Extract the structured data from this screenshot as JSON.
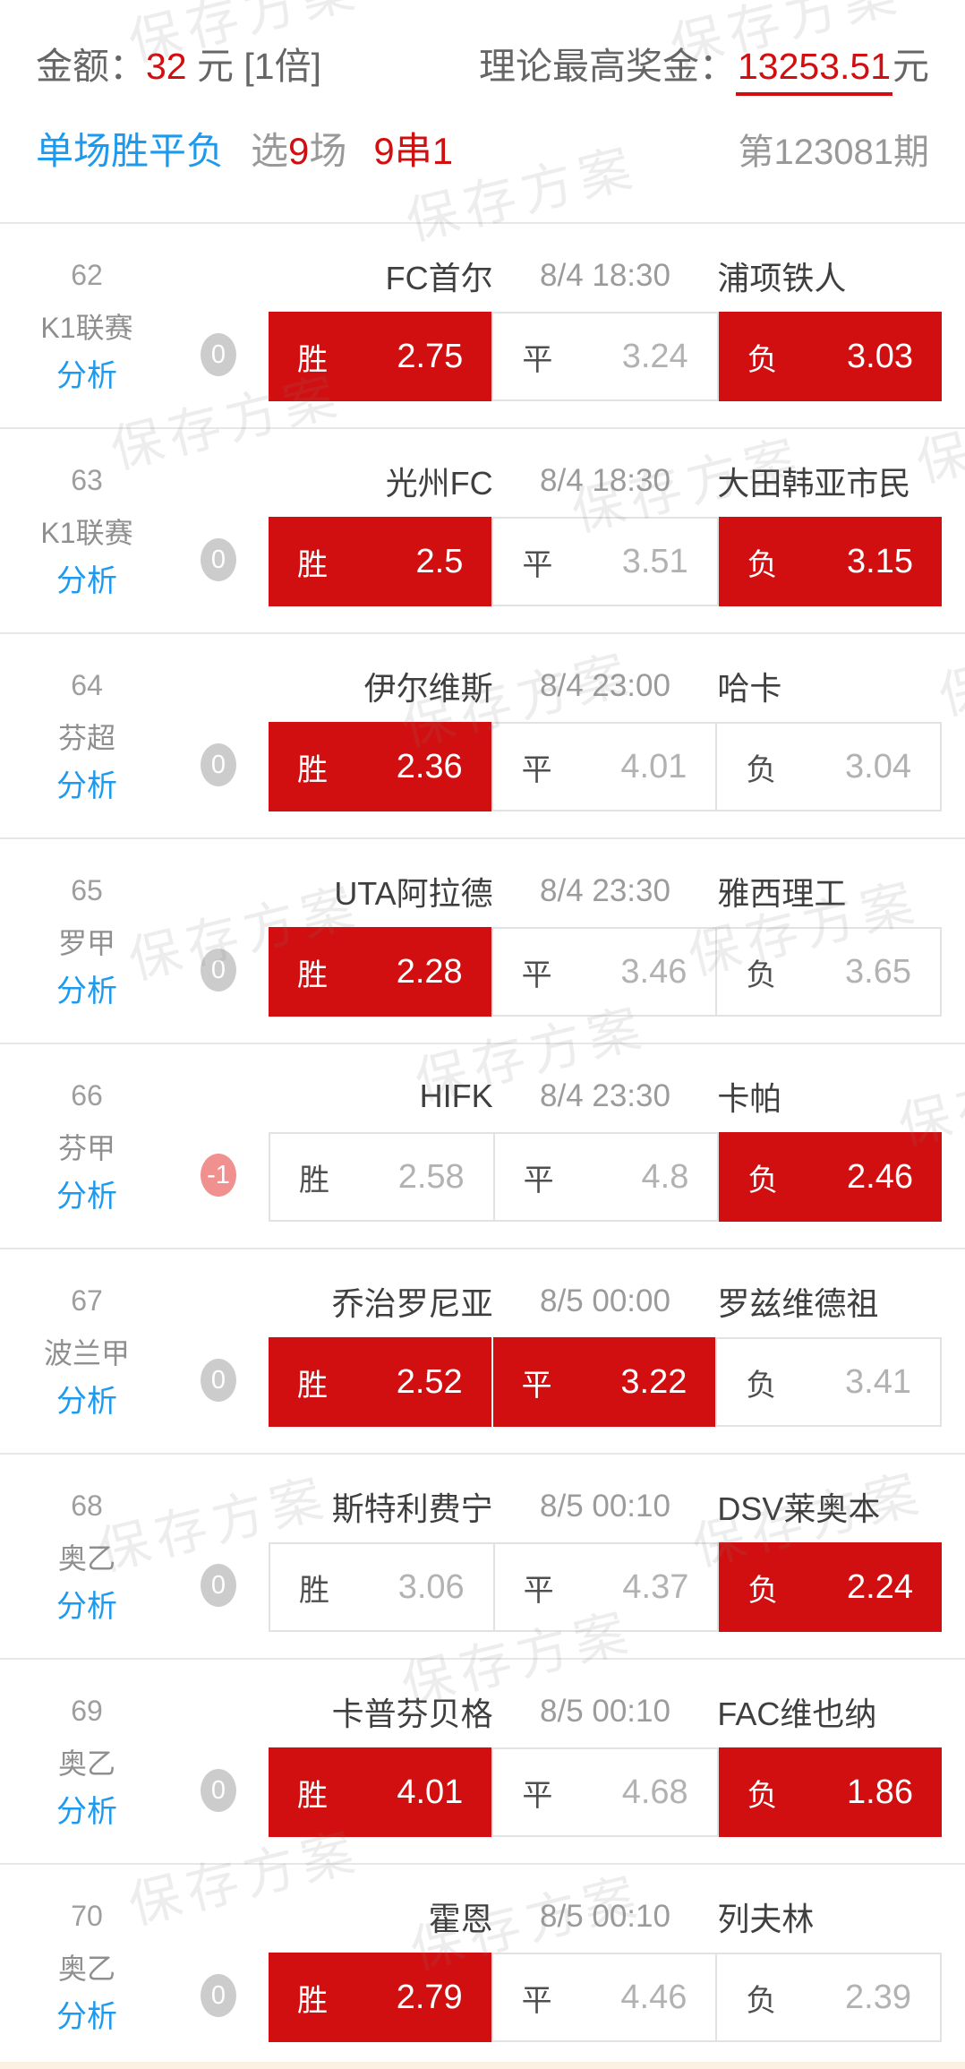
{
  "header": {
    "amount_label": "金额：",
    "amount_value": "32",
    "amount_suffix": "元 [1倍]",
    "prize_label": "理论最高奖金：",
    "prize_value": "13253.51",
    "prize_unit": "元",
    "play_type": "单场胜平负",
    "select_prefix": "选",
    "select_count": "9",
    "select_suffix": "场",
    "parlay": "9串1",
    "issue": "第123081期"
  },
  "watermark": {
    "text": "保存方案"
  },
  "analysis_label": "分析",
  "odds_labels": {
    "win": "胜",
    "draw": "平",
    "lose": "负"
  },
  "colors": {
    "accent_red": "#d20f10",
    "link_blue": "#1c9af0",
    "badge_gray": "#cccccc",
    "badge_pink": "#f09190"
  },
  "matches": [
    {
      "no": "62",
      "league": "K1联赛",
      "handicap": "0",
      "home": "FC首尔",
      "time": "8/4 18:30",
      "away": "浦项铁人",
      "odds": {
        "win": {
          "value": "2.75",
          "selected": true
        },
        "draw": {
          "value": "3.24",
          "selected": false
        },
        "lose": {
          "value": "3.03",
          "selected": true
        }
      }
    },
    {
      "no": "63",
      "league": "K1联赛",
      "handicap": "0",
      "home": "光州FC",
      "time": "8/4 18:30",
      "away": "大田韩亚市民",
      "odds": {
        "win": {
          "value": "2.5",
          "selected": true
        },
        "draw": {
          "value": "3.51",
          "selected": false
        },
        "lose": {
          "value": "3.15",
          "selected": true
        }
      }
    },
    {
      "no": "64",
      "league": "芬超",
      "handicap": "0",
      "home": "伊尔维斯",
      "time": "8/4 23:00",
      "away": "哈卡",
      "odds": {
        "win": {
          "value": "2.36",
          "selected": true
        },
        "draw": {
          "value": "4.01",
          "selected": false
        },
        "lose": {
          "value": "3.04",
          "selected": false
        }
      }
    },
    {
      "no": "65",
      "league": "罗甲",
      "handicap": "0",
      "home": "UTA阿拉德",
      "time": "8/4 23:30",
      "away": "雅西理工",
      "odds": {
        "win": {
          "value": "2.28",
          "selected": true
        },
        "draw": {
          "value": "3.46",
          "selected": false
        },
        "lose": {
          "value": "3.65",
          "selected": false
        }
      }
    },
    {
      "no": "66",
      "league": "芬甲",
      "handicap": "-1",
      "home": "HIFK",
      "time": "8/4 23:30",
      "away": "卡帕",
      "odds": {
        "win": {
          "value": "2.58",
          "selected": false
        },
        "draw": {
          "value": "4.8",
          "selected": false
        },
        "lose": {
          "value": "2.46",
          "selected": true
        }
      }
    },
    {
      "no": "67",
      "league": "波兰甲",
      "handicap": "0",
      "home": "乔治罗尼亚",
      "time": "8/5 00:00",
      "away": "罗兹维德祖",
      "odds": {
        "win": {
          "value": "2.52",
          "selected": true
        },
        "draw": {
          "value": "3.22",
          "selected": true
        },
        "lose": {
          "value": "3.41",
          "selected": false
        }
      }
    },
    {
      "no": "68",
      "league": "奥乙",
      "handicap": "0",
      "home": "斯特利费宁",
      "time": "8/5 00:10",
      "away": "DSV莱奥本",
      "odds": {
        "win": {
          "value": "3.06",
          "selected": false
        },
        "draw": {
          "value": "4.37",
          "selected": false
        },
        "lose": {
          "value": "2.24",
          "selected": true
        }
      }
    },
    {
      "no": "69",
      "league": "奥乙",
      "handicap": "0",
      "home": "卡普芬贝格",
      "time": "8/5 00:10",
      "away": "FAC维也纳",
      "odds": {
        "win": {
          "value": "4.01",
          "selected": true
        },
        "draw": {
          "value": "4.68",
          "selected": false
        },
        "lose": {
          "value": "1.86",
          "selected": true
        }
      }
    },
    {
      "no": "70",
      "league": "奥乙",
      "handicap": "0",
      "home": "霍恩",
      "time": "8/5 00:10",
      "away": "列夫林",
      "odds": {
        "win": {
          "value": "2.79",
          "selected": true
        },
        "draw": {
          "value": "4.46",
          "selected": false
        },
        "lose": {
          "value": "2.39",
          "selected": false
        }
      }
    }
  ]
}
